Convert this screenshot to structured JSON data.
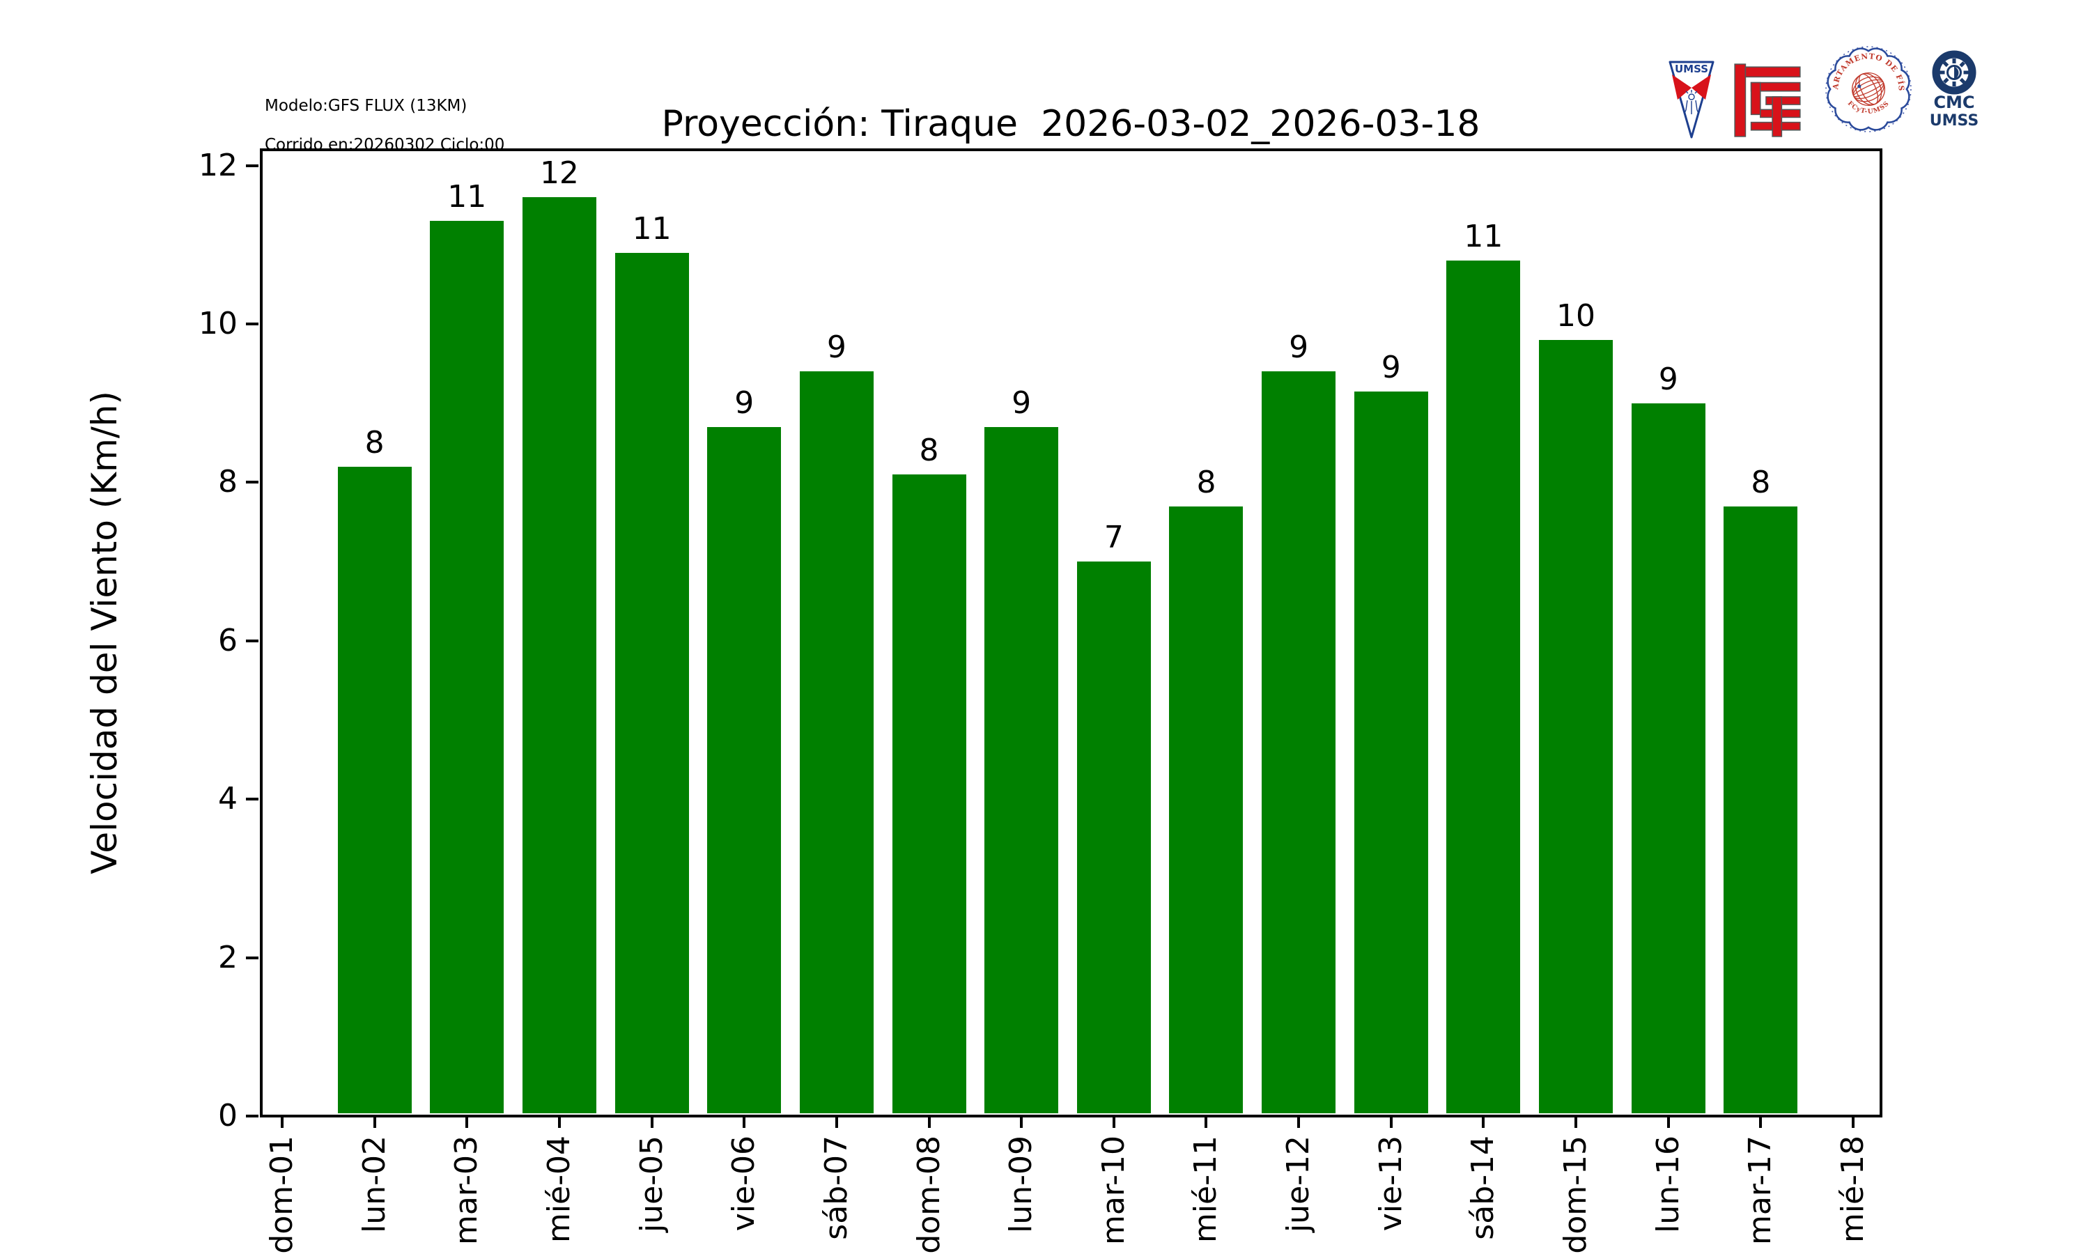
{
  "header": {
    "model_line1": "Modelo:GFS FLUX (13KM)",
    "model_line2": "Corrido en:20260302 Ciclo:00",
    "title": "Proyección: Tiraque  2026-03-02_2026-03-18"
  },
  "logos": {
    "pennant": {
      "text": "UMSS"
    },
    "seal": {
      "top_text": "DEPARTAMENTO DE FÍSICA",
      "bottom_text": "FCyT-UMSS"
    },
    "cmc": {
      "line1": "CMC",
      "line2": "UMSS"
    }
  },
  "colors": {
    "bar_green": "#008000",
    "logo_navy": "#1b3a6b",
    "logo_red": "#d8121a",
    "seal_blue": "#2a4a9b",
    "seal_red": "#c0392b"
  },
  "chart_data": {
    "type": "bar",
    "title": "Proyección: Tiraque  2026-03-02_2026-03-18",
    "xlabel": "",
    "ylabel": "Velocidad del Viento (Km/h)",
    "categories": [
      "dom-01",
      "lun-02",
      "mar-03",
      "mié-04",
      "jue-05",
      "vie-06",
      "sáb-07",
      "dom-08",
      "lun-09",
      "mar-10",
      "mié-11",
      "jue-12",
      "vie-13",
      "sáb-14",
      "dom-15",
      "lun-16",
      "mar-17",
      "mié-18"
    ],
    "values": [
      0,
      8.2,
      11.3,
      11.6,
      10.9,
      8.7,
      9.4,
      8.1,
      8.7,
      7.0,
      7.7,
      9.4,
      9.15,
      10.8,
      9.8,
      9.0,
      7.7,
      0
    ],
    "bar_labels": [
      "",
      "8",
      "11",
      "12",
      "11",
      "9",
      "9",
      "8",
      "9",
      "7",
      "8",
      "9",
      "9",
      "11",
      "10",
      "9",
      "8",
      ""
    ],
    "y_ticks": [
      0,
      2,
      4,
      6,
      8,
      10,
      12
    ],
    "ylim": [
      0,
      12.2
    ],
    "bar_color": "#008000",
    "grid": false,
    "legend": null
  }
}
